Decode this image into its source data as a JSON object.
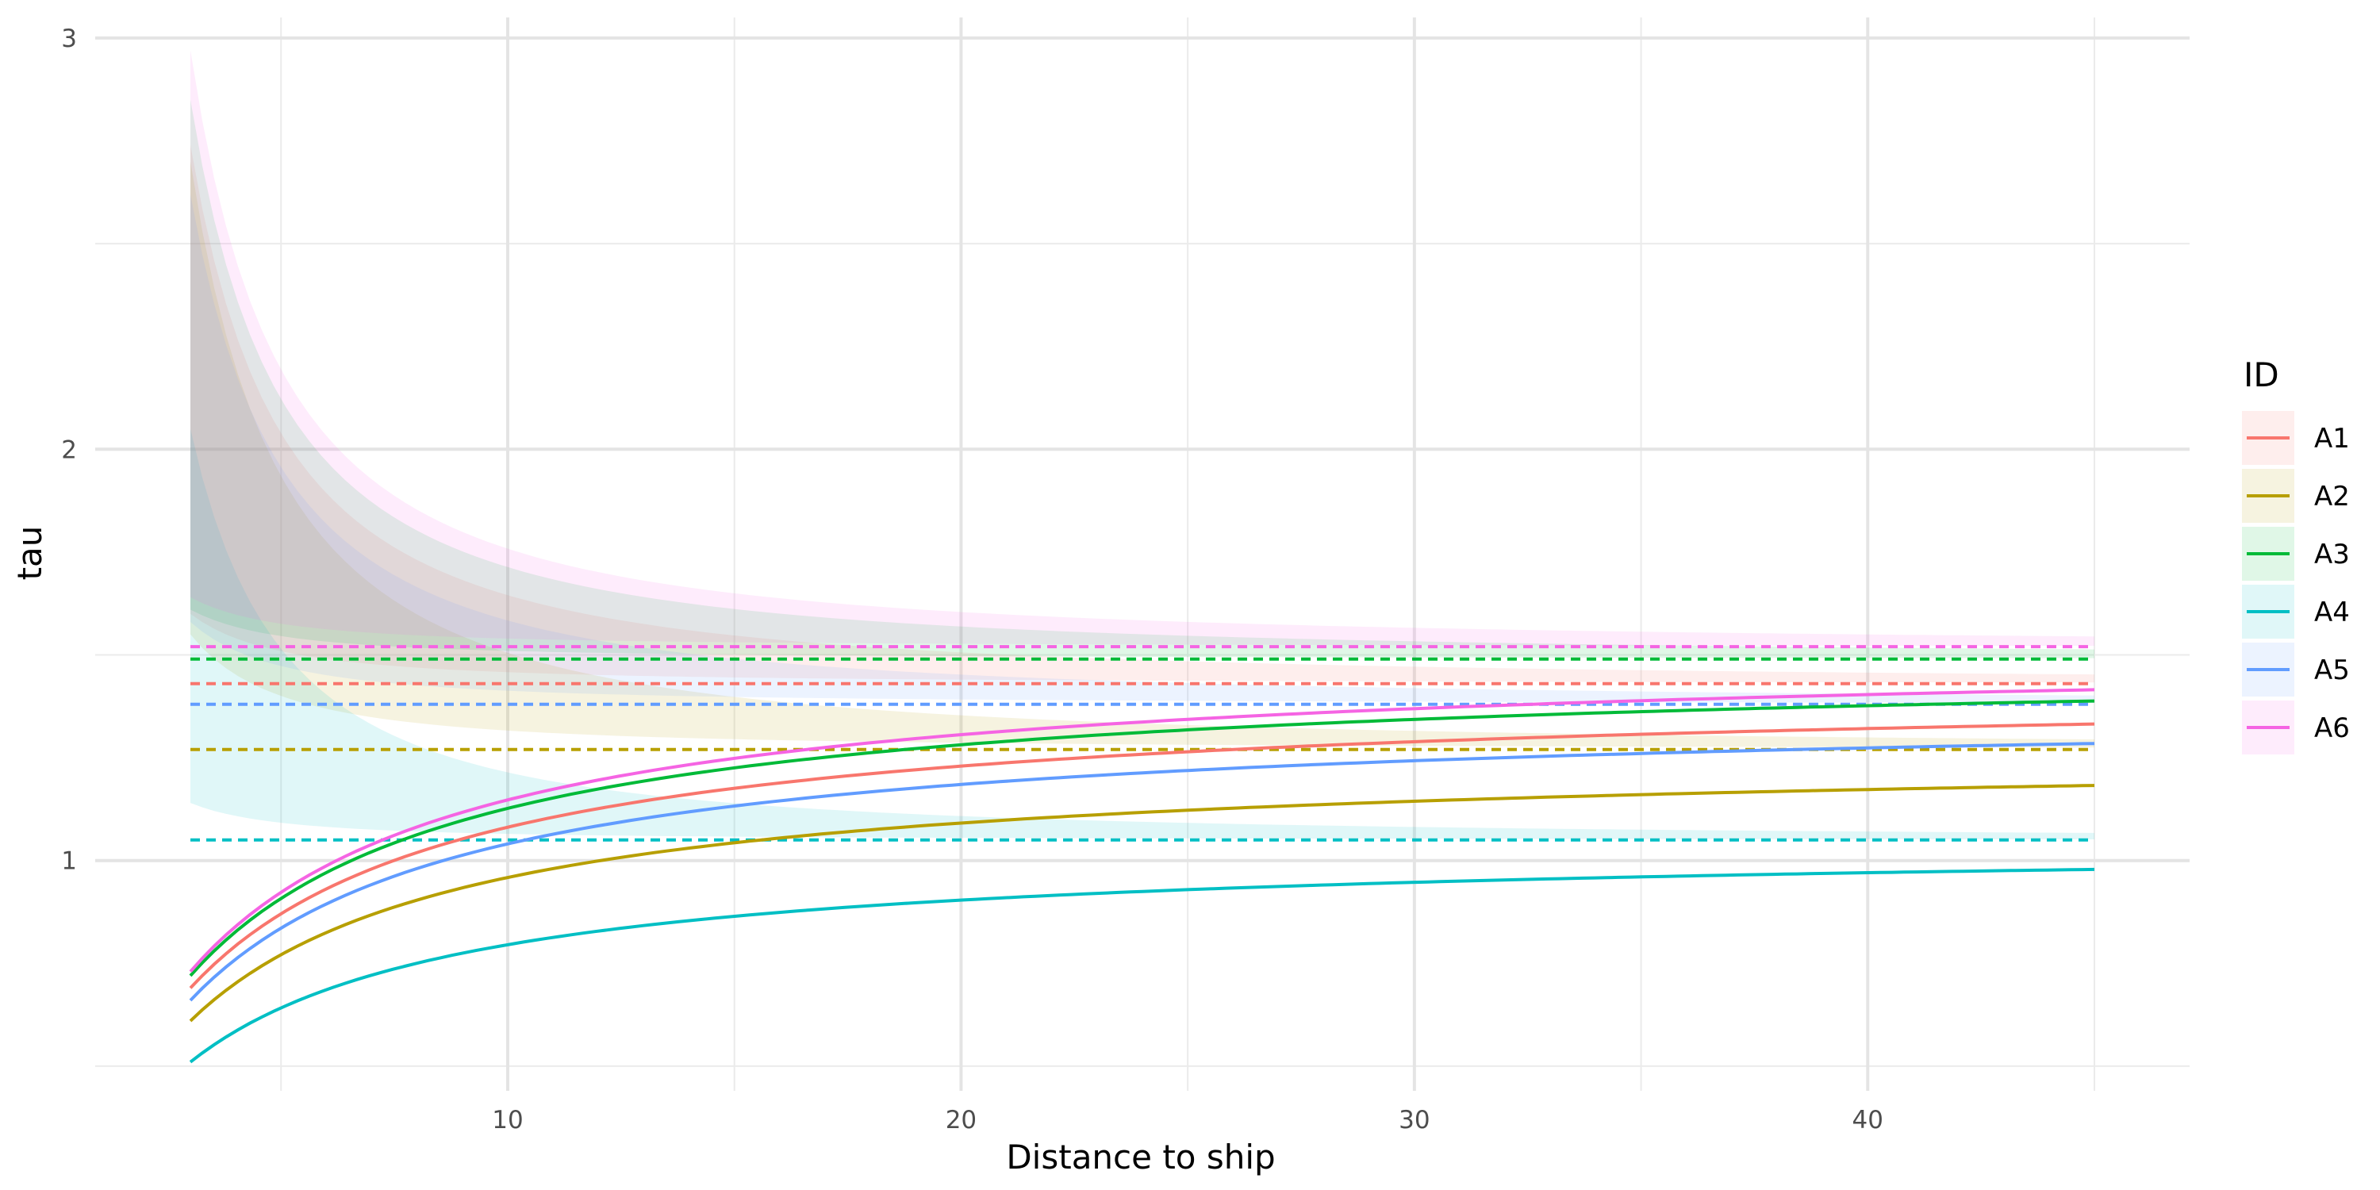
{
  "chart_data": {
    "type": "line",
    "title": "",
    "xlabel": "Distance to ship",
    "ylabel": "tau",
    "xlim": [
      0.9,
      47.1
    ],
    "ylim": [
      0.44,
      3.05
    ],
    "x_ticks": [
      10,
      20,
      30,
      40
    ],
    "x_minor_ticks": [
      5,
      15,
      25,
      35,
      45
    ],
    "y_ticks": [
      1,
      2,
      3
    ],
    "y_minor_ticks": [
      0.5,
      1.5,
      2.5
    ],
    "x_tick_labels": [
      "10",
      "20",
      "30",
      "40"
    ],
    "y_tick_labels": [
      "1",
      "2",
      "3"
    ],
    "grid": true,
    "legend": {
      "title": "ID",
      "position": "right"
    },
    "x_range": [
      3,
      45
    ],
    "curve_shape": "y = asymptote * ((x - 2.7) / (x - 2.7 + 0.0775 * log(x / 2.7)))^8",
    "band_shape": "reference + (band_start - reference) * (3 / x)^1.5",
    "series": [
      {
        "name": "A1",
        "color": "#F8766D",
        "asymptote": 1.43,
        "start": 0.69,
        "band_lower_start": 1.6,
        "band_upper_start": 2.74,
        "reference": 1.43
      },
      {
        "name": "A2",
        "color": "#B79F00",
        "asymptote": 1.27,
        "start": 0.61,
        "band_lower_start": 1.55,
        "band_upper_start": 2.7,
        "reference": 1.27
      },
      {
        "name": "A3",
        "color": "#00BA38",
        "asymptote": 1.49,
        "start": 0.72,
        "band_lower_start": 1.61,
        "band_upper_start": 2.85,
        "reference": 1.49
      },
      {
        "name": "A4",
        "color": "#00BFC4",
        "asymptote": 1.05,
        "start": 0.51,
        "band_lower_start": 1.14,
        "band_upper_start": 2.05,
        "reference": 1.05
      },
      {
        "name": "A5",
        "color": "#619CFF",
        "asymptote": 1.38,
        "start": 0.66,
        "band_lower_start": 1.58,
        "band_upper_start": 2.62,
        "reference": 1.38
      },
      {
        "name": "A6",
        "color": "#F564E3",
        "asymptote": 1.52,
        "start": 0.73,
        "band_lower_start": 1.64,
        "band_upper_start": 2.97,
        "reference": 1.52
      }
    ]
  }
}
